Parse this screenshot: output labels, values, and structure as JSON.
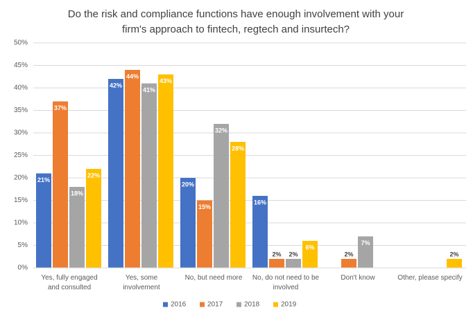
{
  "chart_data": {
    "type": "bar",
    "title": "Do the risk and compliance functions have enough involvement with your firm's approach to fintech, regtech and insurtech?",
    "categories": [
      "Yes, fully engaged and consulted",
      "Yes, some involvement",
      "No, but need more",
      "No, do not need to be involved",
      "Don't know",
      "Other, please specify"
    ],
    "series": [
      {
        "name": "2016",
        "color": "#4472c4",
        "values": [
          21,
          42,
          20,
          16,
          null,
          null
        ],
        "value_labels": [
          "21%",
          "42%",
          "20%",
          "16%",
          null,
          null
        ]
      },
      {
        "name": "2017",
        "color": "#ed7d31",
        "values": [
          37,
          44,
          15,
          2,
          2,
          null
        ],
        "value_labels": [
          "37%",
          "44%",
          "15%",
          "2%",
          "2%",
          null
        ]
      },
      {
        "name": "2018",
        "color": "#a5a5a5",
        "values": [
          18,
          41,
          32,
          2,
          7,
          null
        ],
        "value_labels": [
          "18%",
          "41%",
          "32%",
          "2%",
          "7%",
          null
        ]
      },
      {
        "name": "2019",
        "color": "#ffc000",
        "values": [
          22,
          43,
          28,
          6,
          null,
          2
        ],
        "value_labels": [
          "22%",
          "43%",
          "28%",
          "6%",
          null,
          "2%"
        ]
      }
    ],
    "ylim": [
      0,
      50
    ],
    "yticks": [
      {
        "value": 0,
        "label": "0%"
      },
      {
        "value": 5,
        "label": "5%"
      },
      {
        "value": 10,
        "label": "10%"
      },
      {
        "value": 15,
        "label": "15%"
      },
      {
        "value": 20,
        "label": "20%"
      },
      {
        "value": 25,
        "label": "25%"
      },
      {
        "value": 30,
        "label": "30%"
      },
      {
        "value": 35,
        "label": "35%"
      },
      {
        "value": 40,
        "label": "40%"
      },
      {
        "value": 45,
        "label": "45%"
      },
      {
        "value": 50,
        "label": "50%"
      }
    ],
    "grid": true,
    "legend": "bottom"
  }
}
